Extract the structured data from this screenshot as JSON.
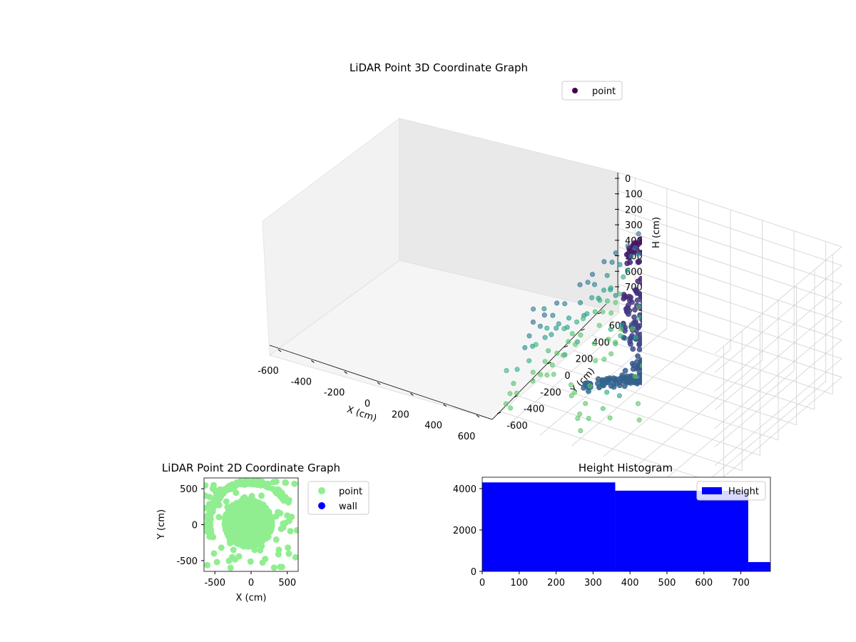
{
  "chart_data": [
    {
      "type": "scatter",
      "projection": "3d",
      "title": "LiDAR Point 3D Coordinate Graph",
      "xlabel": "X (cm)",
      "ylabel": "Y (cm)",
      "zlabel": "H (cm)",
      "xticks": [
        "-600",
        "-400",
        "-200",
        "0",
        "200",
        "400",
        "600"
      ],
      "yticks": [
        "-600",
        "-400",
        "-200",
        "0",
        "200",
        "400",
        "600"
      ],
      "zticks": [
        "0",
        "100",
        "200",
        "300",
        "400",
        "500",
        "600",
        "700"
      ],
      "xlim": [
        -700,
        700
      ],
      "ylim": [
        -700,
        700
      ],
      "zlim": [
        750,
        0
      ],
      "zaxis_inverted": true,
      "colormap": "viridis (by height)",
      "legend": {
        "label": "point",
        "placement": "upper right"
      },
      "grid": true
    },
    {
      "type": "scatter",
      "title": "LiDAR Point 2D Coordinate Graph",
      "xlabel": "X (cm)",
      "ylabel": "Y (cm)",
      "xticks": [
        "-500",
        "0",
        "500"
      ],
      "yticks": [
        "500",
        "0",
        "-500"
      ],
      "xlim": [
        -650,
        650
      ],
      "ylim": [
        -650,
        650
      ],
      "series": [
        {
          "name": "point",
          "color": "#90ee90"
        },
        {
          "name": "wall",
          "color": "#0000ff"
        }
      ],
      "legend": {
        "placement": "outside right"
      }
    },
    {
      "type": "bar",
      "title": "Height Histogram",
      "bins": [
        [
          0,
          360
        ],
        [
          360,
          720
        ],
        [
          720,
          780
        ]
      ],
      "values": [
        4300,
        3900,
        450
      ],
      "xticks": [
        "0",
        "100",
        "200",
        "300",
        "400",
        "500",
        "600",
        "700"
      ],
      "yticks": [
        "0",
        "2000",
        "4000"
      ],
      "xlim": [
        0,
        780
      ],
      "ylim": [
        0,
        4550
      ],
      "color": "#0000ff",
      "legend": {
        "label": "Height",
        "placement": "upper right"
      }
    }
  ]
}
